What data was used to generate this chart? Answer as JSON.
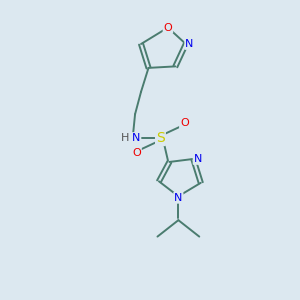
{
  "background_color": "#dce8f0",
  "bond_color": "#4a7c6f",
  "atom_colors": {
    "N": "#0000ee",
    "O": "#ee0000",
    "S": "#cccc00",
    "H": "#555555",
    "C": "#333333"
  },
  "font_size_atom": 8,
  "figsize": [
    3.0,
    3.0
  ],
  "dpi": 100
}
